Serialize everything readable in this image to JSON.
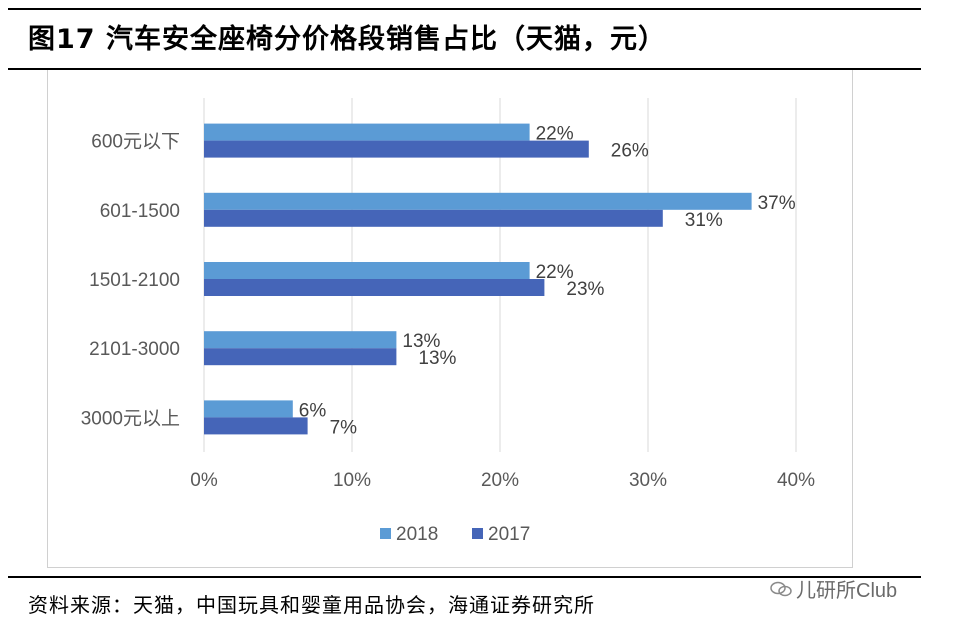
{
  "title": "图17 汽车安全座椅分价格段销售占比（天猫，元）",
  "source": "资料来源：天猫，中国玩具和婴童用品协会，海通证券研究所",
  "watermark": {
    "text": "儿研所Club",
    "icon": "wechat-icon"
  },
  "colors": {
    "2018": "#5B9BD5",
    "2017": "#4565B8",
    "grid": "#d9d9d9",
    "axis_text": "#595959"
  },
  "chart_data": {
    "type": "bar",
    "orientation": "horizontal",
    "categories": [
      "600元以下",
      "601-1500",
      "1501-2100",
      "2101-3000",
      "3000元以上"
    ],
    "series": [
      {
        "name": "2018",
        "values": [
          22,
          37,
          22,
          13,
          6
        ],
        "labels": [
          "22%",
          "37%",
          "22%",
          "13%",
          "6%"
        ]
      },
      {
        "name": "2017",
        "values": [
          26,
          31,
          23,
          13,
          7
        ],
        "labels": [
          "26%",
          "31%",
          "23%",
          "13%",
          "7%"
        ]
      }
    ],
    "xlim": [
      0,
      40
    ],
    "xticks": [
      0,
      10,
      20,
      30,
      40
    ],
    "xtick_labels": [
      "0%",
      "10%",
      "20%",
      "30%",
      "40%"
    ],
    "grid": true,
    "legend": "bottom-center"
  }
}
